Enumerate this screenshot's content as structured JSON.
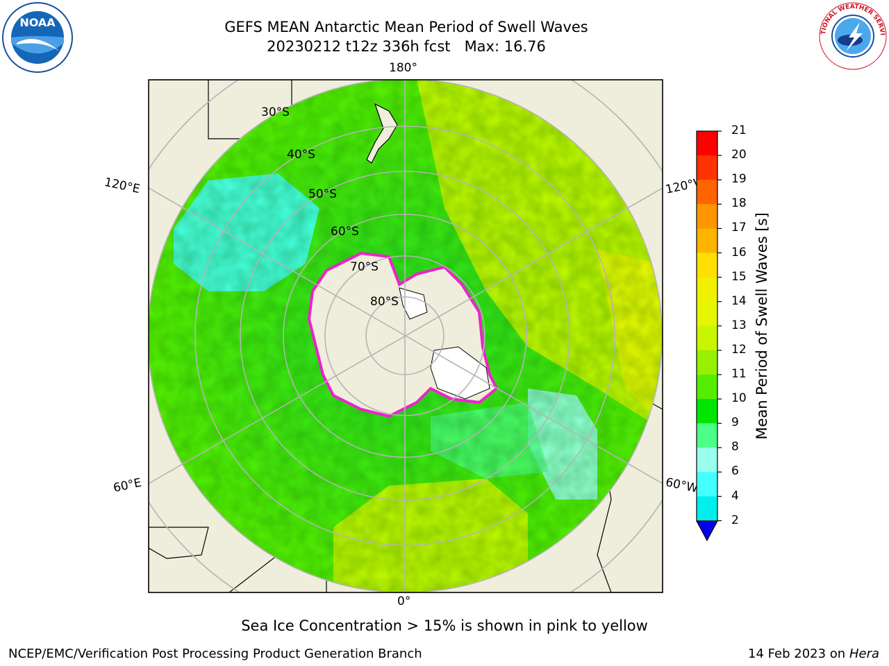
{
  "title": {
    "line1": "GEFS MEAN Antarctic Mean Period of Swell Waves",
    "line2_run": "20230212 t12z 336h fcst",
    "line2_max": "Max: 16.76"
  },
  "map": {
    "projection": "south-polar-stereographic",
    "longitude_labels": {
      "top": "180°",
      "bottom": "0°",
      "upper_left": "120°E",
      "lower_left": "60°E",
      "upper_right": "120°W",
      "lower_right": "60°W"
    },
    "latitude_labels": [
      "30°S",
      "40°S",
      "50°S",
      "60°S",
      "70°S",
      "80°S"
    ],
    "colors": {
      "land": "#efeddc",
      "ice_shelf": "#ffffff",
      "grid": "#b4b4b4",
      "ice_edge": "#ee22cc"
    }
  },
  "colorbar": {
    "label": "Mean Period of Swell Waves [s]",
    "ticks": [
      "21",
      "20",
      "19",
      "18",
      "17",
      "16",
      "15",
      "14",
      "13",
      "12",
      "11",
      "10",
      "9",
      "8",
      "6",
      "4",
      "2"
    ],
    "colors_top_to_bottom": [
      "#ff0000",
      "#ff3200",
      "#ff6400",
      "#ff9600",
      "#ffb400",
      "#ffe000",
      "#f0f000",
      "#e6f500",
      "#c8f500",
      "#96f000",
      "#55ee00",
      "#00e600",
      "#4dff88",
      "#99ffee",
      "#44ffff",
      "#00eeee",
      "#0088ff",
      "#0000ee"
    ],
    "extend": "min"
  },
  "note": "Sea Ice Concentration > 15% is shown in pink to yellow",
  "footer": {
    "left": "NCEP/EMC/Verification Post Processing Product Generation Branch",
    "right_date": "14 Feb 2023 on",
    "right_host": "Hera"
  },
  "logos": {
    "left": "NOAA",
    "right": "NATIONAL WEATHER SERVICE"
  }
}
